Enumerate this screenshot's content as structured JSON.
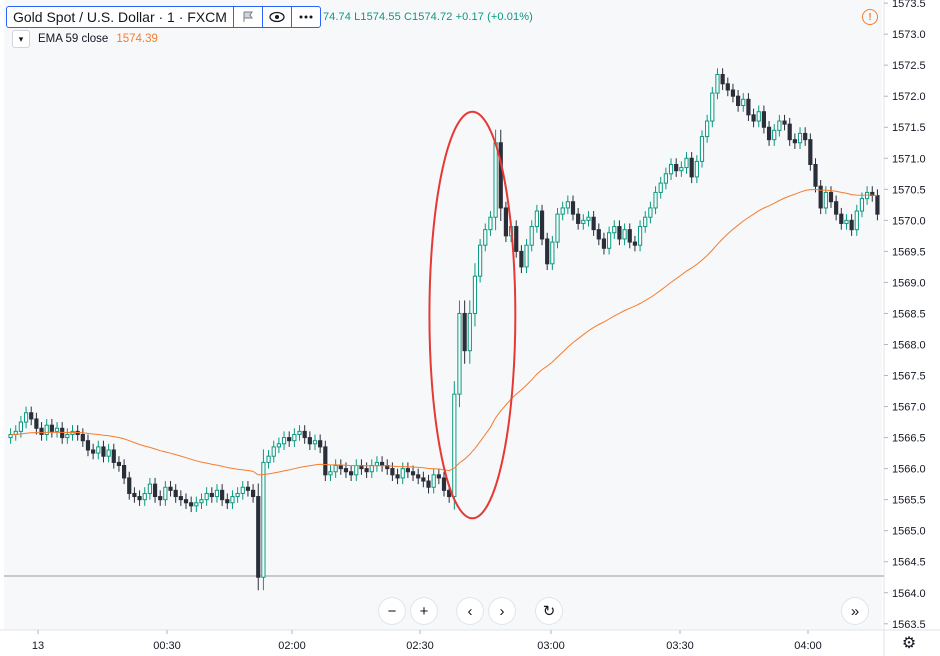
{
  "legend": {
    "symbol": "Gold Spot / U.S. Dollar · 1 · FXCM",
    "flag_icon": "flag-icon",
    "eye_icon": "eye-icon",
    "more_icon": "more-icon",
    "ohlc_text": "74.74  L1574.55  C1574.72  +0.17 (+0.01%)"
  },
  "indicator": {
    "label": "EMA 59 close",
    "value": "1574.39",
    "color": "#f57c2f"
  },
  "navigation": {
    "zoom_out": "−",
    "zoom_in": "+",
    "scroll_left": "‹",
    "scroll_right": "›",
    "reset": "↻",
    "go_latest": "»"
  },
  "colors": {
    "up": "#089981",
    "down": "#2a2e39",
    "ema": "#f57c2f",
    "annotation": "#e53935",
    "background": "#f7f8fa"
  },
  "chart_data": {
    "type": "candlestick",
    "title": "Gold Spot / U.S. Dollar · 1 · FXCM",
    "x_ticks": [
      "13",
      "00:30",
      "02:00",
      "02:30",
      "03:00",
      "03:30",
      "04:00"
    ],
    "y_ticks": [
      1563.5,
      1564.0,
      1564.5,
      1565.0,
      1565.5,
      1566.0,
      1566.5,
      1567.0,
      1567.5,
      1568.0,
      1568.5,
      1569.0,
      1569.5,
      1570.0,
      1570.5,
      1571.0,
      1571.5,
      1572.0,
      1572.5,
      1573.0,
      1573.5
    ],
    "y_range": [
      1563.4,
      1573.55
    ],
    "grid": false,
    "horizontal_line": 1564.27,
    "annotation": {
      "shape": "ellipse",
      "color": "#e53935",
      "around": "spike between 02:45 and 02:50"
    },
    "close_series": [
      1566.55,
      1566.6,
      1566.75,
      1566.9,
      1566.8,
      1566.65,
      1566.55,
      1566.7,
      1566.6,
      1566.65,
      1566.5,
      1566.55,
      1566.6,
      1566.55,
      1566.45,
      1566.3,
      1566.25,
      1566.35,
      1566.2,
      1566.3,
      1566.1,
      1566.05,
      1565.85,
      1565.6,
      1565.55,
      1565.5,
      1565.6,
      1565.75,
      1565.55,
      1565.5,
      1565.7,
      1565.65,
      1565.55,
      1565.5,
      1565.45,
      1565.4,
      1565.45,
      1565.5,
      1565.6,
      1565.55,
      1565.65,
      1565.5,
      1565.45,
      1565.55,
      1565.6,
      1565.7,
      1565.65,
      1565.55,
      1564.25,
      1566.1,
      1566.2,
      1566.35,
      1566.4,
      1566.5,
      1566.45,
      1566.55,
      1566.6,
      1566.5,
      1566.4,
      1566.45,
      1566.35,
      1565.9,
      1565.95,
      1566.05,
      1566.0,
      1565.95,
      1565.9,
      1566.05,
      1566.0,
      1565.95,
      1566.05,
      1566.1,
      1566.05,
      1566.0,
      1565.9,
      1565.85,
      1566.0,
      1565.95,
      1565.9,
      1565.85,
      1565.8,
      1565.7,
      1565.9,
      1565.85,
      1565.65,
      1565.55,
      1567.2,
      1568.5,
      1567.9,
      1568.5,
      1569.1,
      1569.6,
      1569.85,
      1570.05,
      1571.25,
      1570.2,
      1569.75,
      1569.9,
      1569.5,
      1569.25,
      1569.6,
      1569.9,
      1570.15,
      1569.7,
      1569.3,
      1569.65,
      1570.1,
      1570.2,
      1570.3,
      1570.1,
      1569.95,
      1570.0,
      1570.05,
      1569.85,
      1569.7,
      1569.55,
      1569.8,
      1569.9,
      1569.7,
      1569.85,
      1569.65,
      1569.6,
      1569.9,
      1570.05,
      1570.2,
      1570.45,
      1570.6,
      1570.75,
      1570.9,
      1570.8,
      1570.85,
      1571.0,
      1570.7,
      1570.95,
      1571.35,
      1571.6,
      1572.05,
      1572.35,
      1572.2,
      1572.1,
      1572.0,
      1571.85,
      1571.95,
      1571.7,
      1571.6,
      1571.75,
      1571.5,
      1571.3,
      1571.45,
      1571.6,
      1571.55,
      1571.3,
      1571.25,
      1571.4,
      1571.3,
      1570.9,
      1570.55,
      1570.2,
      1570.45,
      1570.3,
      1570.1,
      1569.95,
      1570.0,
      1569.85,
      1570.15,
      1570.35,
      1570.45,
      1570.4,
      1570.1
    ]
  }
}
